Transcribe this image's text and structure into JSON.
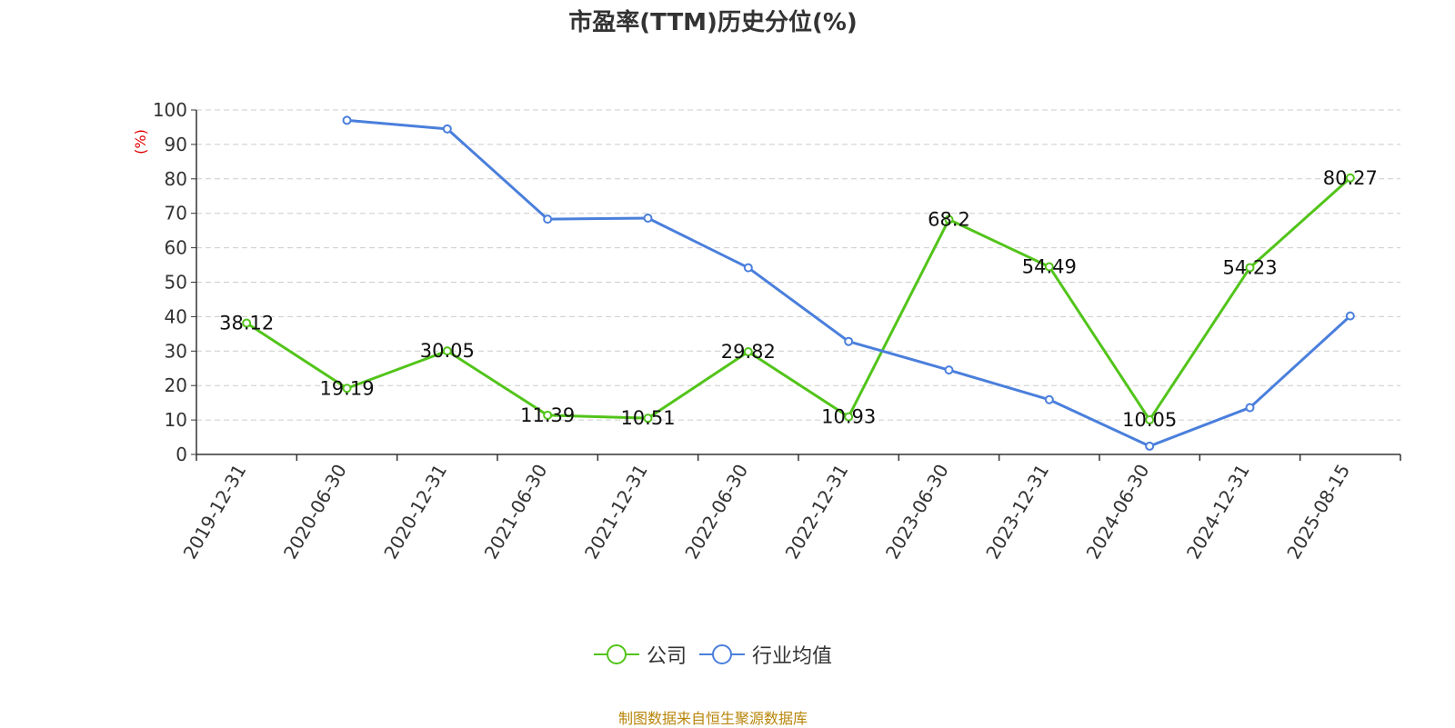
{
  "chart_data": {
    "type": "line",
    "title": "市盈率(TTM)历史分位(%)",
    "ylabel": "(%)",
    "ylim": [
      0,
      100
    ],
    "yticks": [
      0,
      10,
      20,
      30,
      40,
      50,
      60,
      70,
      80,
      90,
      100
    ],
    "grid": true,
    "legend_position": "bottom",
    "categories": [
      "2019-12-31",
      "2020-06-30",
      "2020-12-31",
      "2021-06-30",
      "2021-12-31",
      "2022-06-30",
      "2022-12-31",
      "2023-06-30",
      "2023-12-31",
      "2024-06-30",
      "2024-12-31",
      "2025-08-15"
    ],
    "series": [
      {
        "name": "公司",
        "color": "#52c41a",
        "show_labels": true,
        "values": [
          38.12,
          19.19,
          30.05,
          11.39,
          10.51,
          29.82,
          10.93,
          68.2,
          54.49,
          10.05,
          54.23,
          80.27
        ]
      },
      {
        "name": "行业均值",
        "color": "#4a7fdc",
        "show_labels": false,
        "values": [
          null,
          97.0,
          94.5,
          68.3,
          68.6,
          54.2,
          32.8,
          24.5,
          15.9,
          2.4,
          13.6,
          40.2
        ]
      }
    ]
  },
  "source_note": "制图数据来自恒生聚源数据库"
}
